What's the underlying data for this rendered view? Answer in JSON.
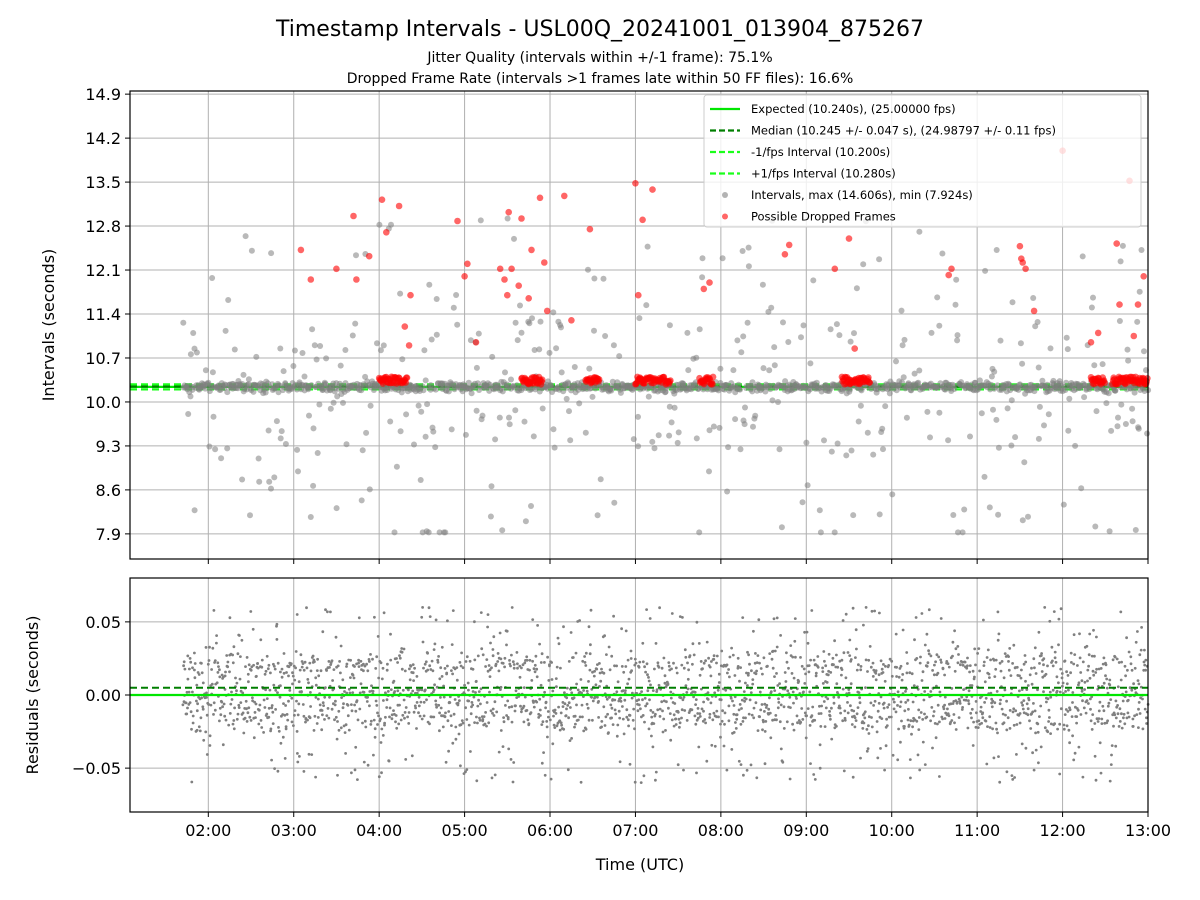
{
  "figure": {
    "title": "Timestamp Intervals - USL00Q_20241001_013904_875267",
    "subtitle_lines": [
      "Jitter Quality (intervals within +/-1 frame): 75.1%",
      "Dropped Frame Rate (intervals >1 frames late within 50 FF files): 16.6%"
    ],
    "xlabel": "Time (UTC)"
  },
  "colors": {
    "expected": "#00e600",
    "median": "#007f00",
    "fps_band": "#1aff1a",
    "intervals": "#808080",
    "dropped": "#ff0000",
    "grid": "#b0b0b0"
  },
  "chart_data": [
    {
      "type": "scatter",
      "panel": "intervals",
      "ylabel": "Intervals (seconds)",
      "xlim": [
        "01:05",
        "13:00"
      ],
      "ylim": [
        7.5,
        14.95
      ],
      "x_ticks": [
        "02:00",
        "03:00",
        "04:00",
        "05:00",
        "06:00",
        "07:00",
        "08:00",
        "09:00",
        "10:00",
        "11:00",
        "12:00",
        "13:00"
      ],
      "y_ticks": [
        "7.9",
        "8.6",
        "9.3",
        "10.0",
        "10.7",
        "11.4",
        "12.1",
        "12.8",
        "13.5",
        "14.2",
        "14.9"
      ],
      "grid": true,
      "legend_position": "top-right",
      "reference_lines": [
        {
          "name": "Expected (10.240s), (25.00000 fps)",
          "y": 10.24,
          "style": "solid"
        },
        {
          "name": "Median (10.245 +/- 0.047 s), (24.98797 +/- 0.11 fps)",
          "y": 10.245,
          "style": "dashed"
        },
        {
          "name": "-1/fps Interval (10.200s)",
          "y": 10.2,
          "style": "dashed"
        },
        {
          "name": "+1/fps Interval (10.280s)",
          "y": 10.28,
          "style": "dashed"
        }
      ],
      "series": [
        {
          "name": "Intervals, max (14.606s), min (7.924s)",
          "x_range": [
            "01:42",
            "13:00"
          ],
          "y_core": 10.24,
          "core_spread": 0.06,
          "outlier_fraction": 0.3,
          "y_max": 14.606,
          "y_min": 7.924
        },
        {
          "name": "Possible Dropped Frames",
          "clusters": [
            {
              "start": "04:00",
              "end": "04:20"
            },
            {
              "start": "05:40",
              "end": "05:55"
            },
            {
              "start": "06:25",
              "end": "06:35"
            },
            {
              "start": "07:00",
              "end": "07:25"
            },
            {
              "start": "07:45",
              "end": "07:55"
            },
            {
              "start": "09:25",
              "end": "09:45"
            },
            {
              "start": "12:20",
              "end": "12:30"
            },
            {
              "start": "12:35",
              "end": "13:00"
            }
          ],
          "outliers": [
            {
              "x": "03:05",
              "y": 12.42
            },
            {
              "x": "03:12",
              "y": 11.95
            },
            {
              "x": "03:30",
              "y": 12.12
            },
            {
              "x": "03:42",
              "y": 12.96
            },
            {
              "x": "03:44",
              "y": 11.95
            },
            {
              "x": "03:53",
              "y": 12.32
            },
            {
              "x": "04:02",
              "y": 13.22
            },
            {
              "x": "04:05",
              "y": 12.7
            },
            {
              "x": "04:14",
              "y": 13.12
            },
            {
              "x": "04:18",
              "y": 11.2
            },
            {
              "x": "04:22",
              "y": 11.7
            },
            {
              "x": "04:21",
              "y": 10.9
            },
            {
              "x": "04:55",
              "y": 12.88
            },
            {
              "x": "05:00",
              "y": 12.0
            },
            {
              "x": "05:02",
              "y": 12.2
            },
            {
              "x": "05:08",
              "y": 10.95
            },
            {
              "x": "05:25",
              "y": 12.12
            },
            {
              "x": "05:28",
              "y": 11.95
            },
            {
              "x": "05:30",
              "y": 11.7
            },
            {
              "x": "05:31",
              "y": 13.02
            },
            {
              "x": "05:33",
              "y": 12.12
            },
            {
              "x": "05:38",
              "y": 11.85
            },
            {
              "x": "05:40",
              "y": 12.92
            },
            {
              "x": "05:45",
              "y": 11.65
            },
            {
              "x": "05:47",
              "y": 12.42
            },
            {
              "x": "05:53",
              "y": 13.25
            },
            {
              "x": "05:56",
              "y": 12.22
            },
            {
              "x": "05:58",
              "y": 11.45
            },
            {
              "x": "06:10",
              "y": 13.28
            },
            {
              "x": "06:15",
              "y": 11.3
            },
            {
              "x": "06:28",
              "y": 12.75
            },
            {
              "x": "07:00",
              "y": 13.48
            },
            {
              "x": "07:02",
              "y": 11.7
            },
            {
              "x": "07:05",
              "y": 12.9
            },
            {
              "x": "07:12",
              "y": 13.38
            },
            {
              "x": "07:48",
              "y": 11.8
            },
            {
              "x": "07:52",
              "y": 11.9
            },
            {
              "x": "08:45",
              "y": 12.35
            },
            {
              "x": "08:48",
              "y": 12.5
            },
            {
              "x": "09:20",
              "y": 12.12
            },
            {
              "x": "09:30",
              "y": 12.6
            },
            {
              "x": "09:34",
              "y": 10.85
            },
            {
              "x": "10:40",
              "y": 12.02
            },
            {
              "x": "10:42",
              "y": 12.12
            },
            {
              "x": "11:30",
              "y": 12.48
            },
            {
              "x": "11:31",
              "y": 12.28
            },
            {
              "x": "11:32",
              "y": 12.22
            },
            {
              "x": "11:34",
              "y": 12.12
            },
            {
              "x": "11:40",
              "y": 11.45
            },
            {
              "x": "12:00",
              "y": 14.0
            },
            {
              "x": "12:20",
              "y": 10.95
            },
            {
              "x": "12:25",
              "y": 11.1
            },
            {
              "x": "12:38",
              "y": 12.52
            },
            {
              "x": "12:40",
              "y": 11.55
            },
            {
              "x": "12:47",
              "y": 13.52
            },
            {
              "x": "12:50",
              "y": 11.05
            },
            {
              "x": "12:53",
              "y": 11.55
            },
            {
              "x": "12:57",
              "y": 12.0
            }
          ]
        }
      ]
    },
    {
      "type": "scatter",
      "panel": "residuals",
      "ylabel": "Residuals (seconds)",
      "xlim": [
        "01:05",
        "13:00"
      ],
      "ylim": [
        -0.08,
        0.08
      ],
      "x_ticks": [
        "02:00",
        "03:00",
        "04:00",
        "05:00",
        "06:00",
        "07:00",
        "08:00",
        "09:00",
        "10:00",
        "11:00",
        "12:00",
        "13:00"
      ],
      "y_ticks": [
        "−0.05",
        "0.00",
        "0.05"
      ],
      "grid": true,
      "reference_lines": [
        {
          "name": "Expected",
          "y": 0.0,
          "style": "solid"
        },
        {
          "name": "Median",
          "y": 0.005,
          "style": "dashed"
        }
      ],
      "series": [
        {
          "name": "Residuals",
          "x_range": [
            "01:42",
            "13:00"
          ],
          "bands_y": [
            0.02,
            -0.015,
            0.0
          ],
          "band_spread": 0.012,
          "scatter_fraction": 0.25,
          "range": [
            -0.078,
            0.078
          ]
        }
      ]
    }
  ]
}
